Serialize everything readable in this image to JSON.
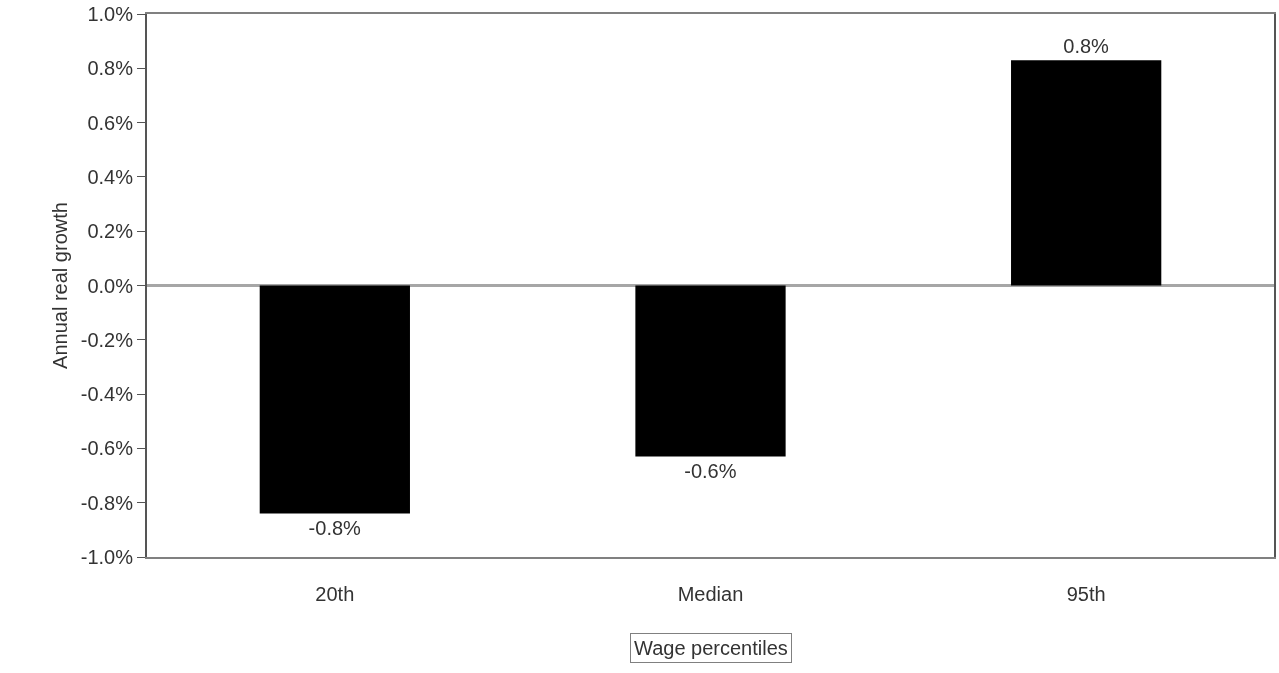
{
  "chart_data": {
    "type": "bar",
    "xlabel": "Wage percentiles",
    "ylabel": "Annual real growth",
    "categories": [
      "20th",
      "Median",
      "95th"
    ],
    "values": [
      -0.84,
      -0.63,
      0.83
    ],
    "color": "#000000",
    "value_labels": [
      "-0.8%",
      "-0.6%",
      "0.8%"
    ],
    "ylim": [
      -1.0,
      1.0
    ],
    "yticks": [
      {
        "value": -1.0,
        "label": "-1.0%"
      },
      {
        "value": -0.8,
        "label": "-0.8%"
      },
      {
        "value": -0.6,
        "label": "-0.6%"
      },
      {
        "value": -0.4,
        "label": "-0.4%"
      },
      {
        "value": -0.2,
        "label": "-0.2%"
      },
      {
        "value": 0.0,
        "label": "0.0%"
      },
      {
        "value": 0.2,
        "label": "0.2%"
      },
      {
        "value": 0.4,
        "label": "0.4%"
      },
      {
        "value": 0.6,
        "label": "0.6%"
      },
      {
        "value": 0.8,
        "label": "0.8%"
      },
      {
        "value": 1.0,
        "label": "1.0%"
      }
    ],
    "ref_lines": [
      {
        "axis": "y",
        "value": 0.0,
        "color": "#a6a6a6"
      }
    ],
    "grid": false,
    "legend": false
  }
}
